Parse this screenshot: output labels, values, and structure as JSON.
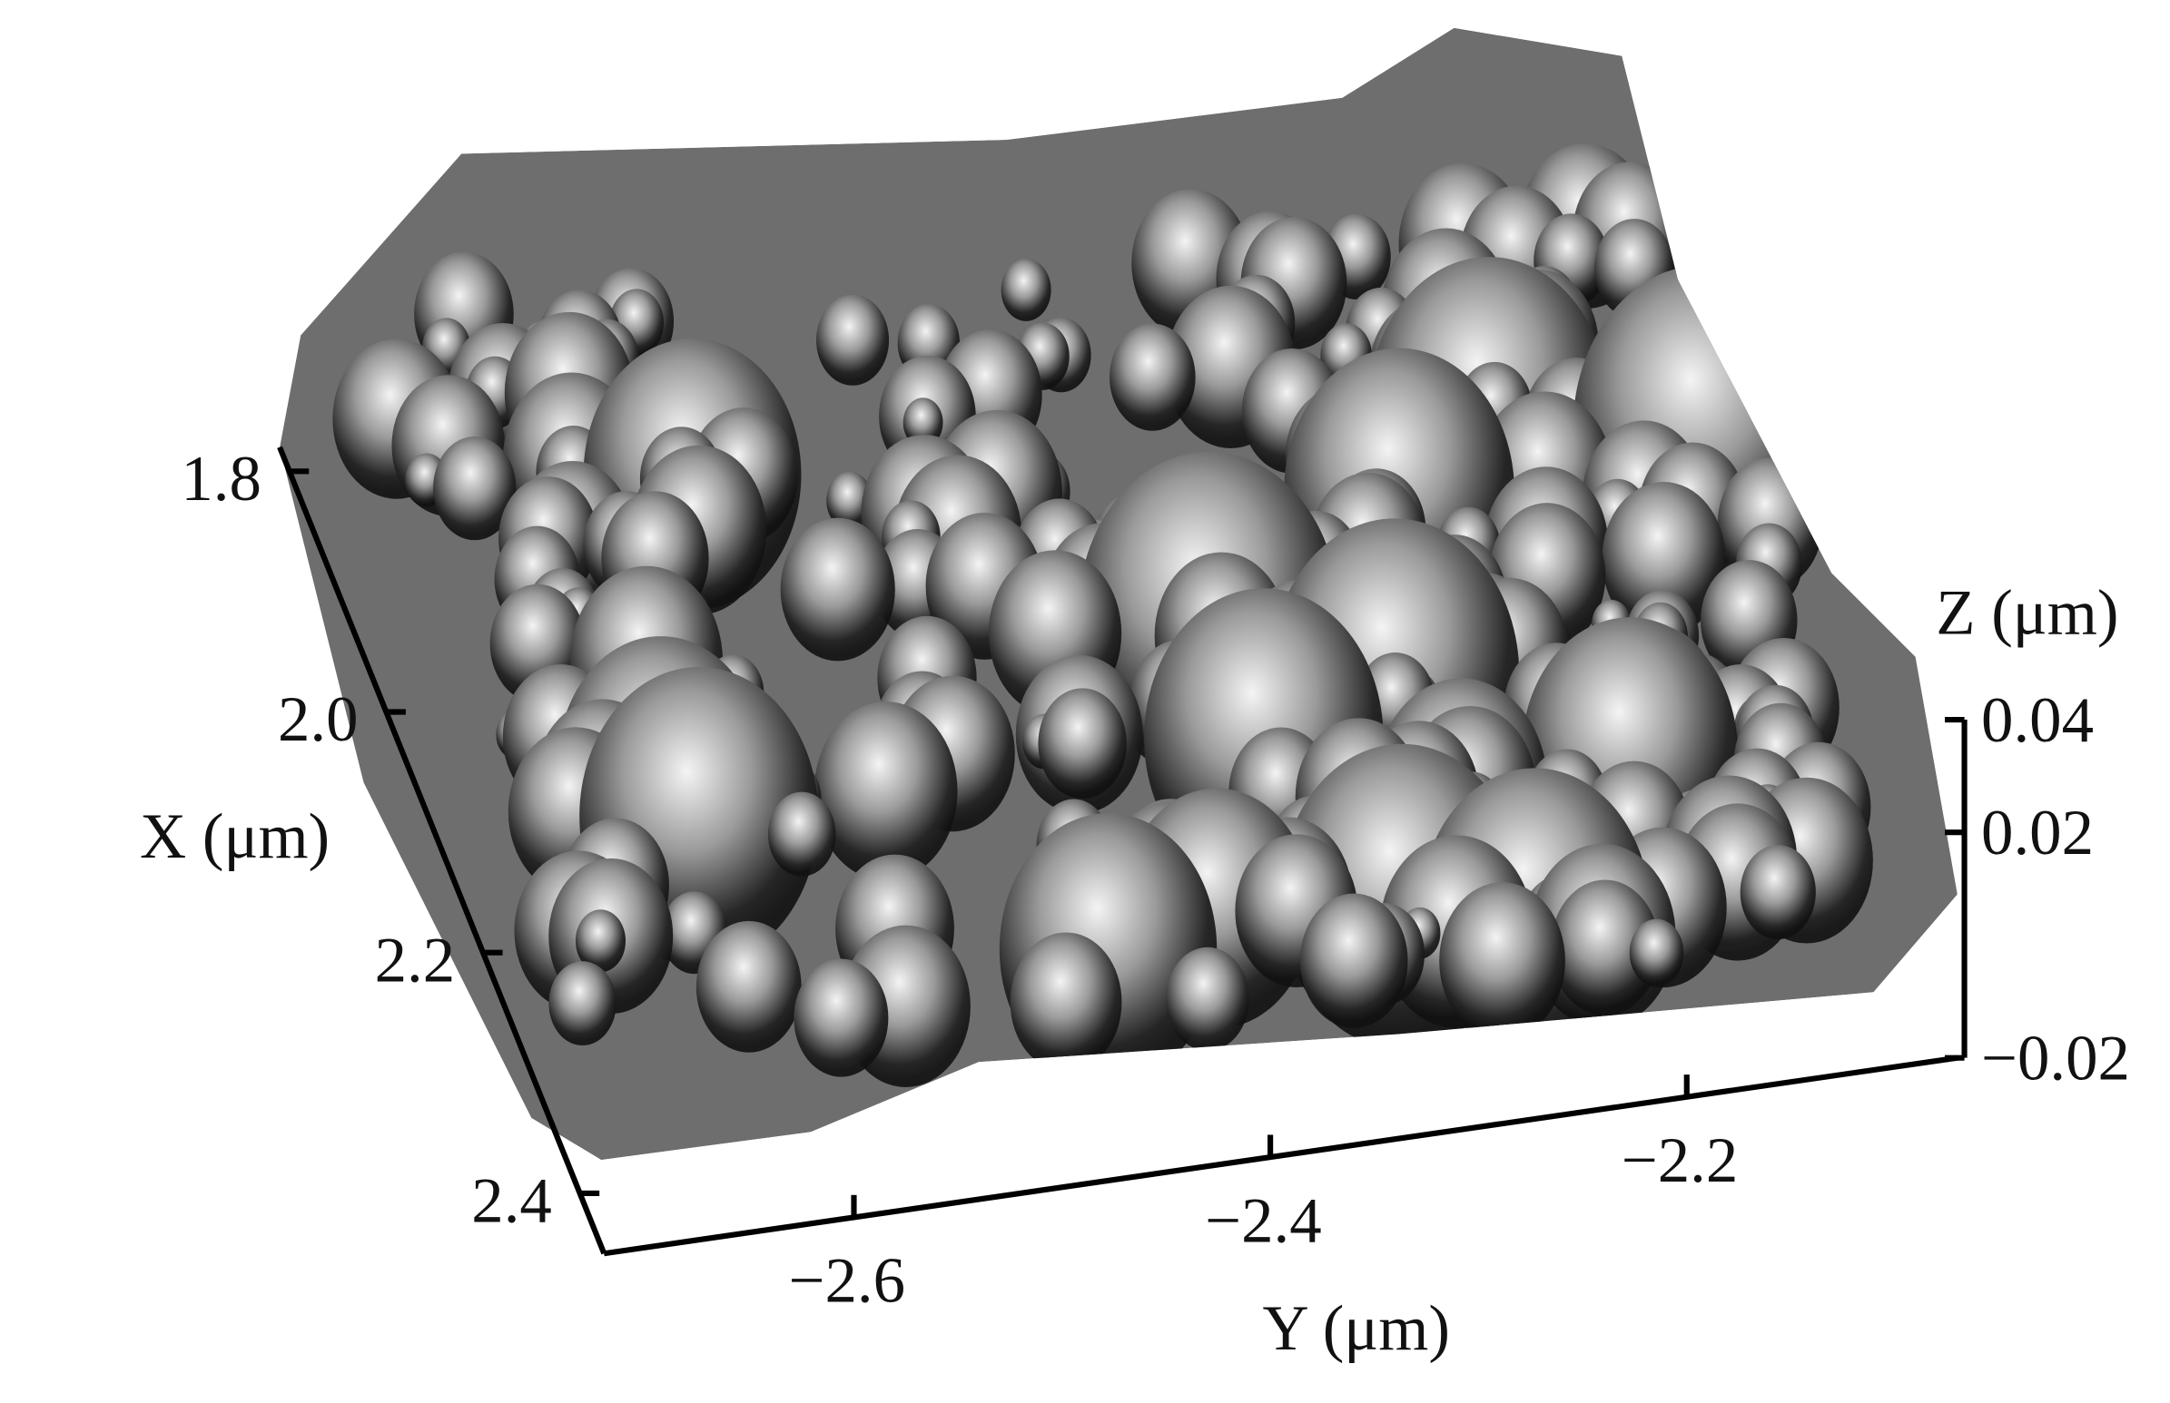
{
  "chart_data": {
    "type": "surface",
    "xlabel": "X (μm)",
    "ylabel": "Y (μm)",
    "zlabel": "Z (μm)",
    "xlim": [
      1.78,
      2.45
    ],
    "xticks": [
      1.8,
      {
        "value": 2,
        "label": "2.0"
      },
      2.2,
      2.4
    ],
    "ylim": [
      -2.72,
      -2.07
    ],
    "yticks": [
      {
        "value": -2.6,
        "label": "−2.6"
      },
      {
        "value": -2.4,
        "label": "−2.4"
      },
      {
        "value": -2.2,
        "label": "−2.2"
      }
    ],
    "zlim": [
      -0.02,
      0.04
    ],
    "zticks": [
      0.04,
      0.02,
      {
        "value": -0.02,
        "label": "−0.02"
      }
    ],
    "colormap": "gray"
  }
}
